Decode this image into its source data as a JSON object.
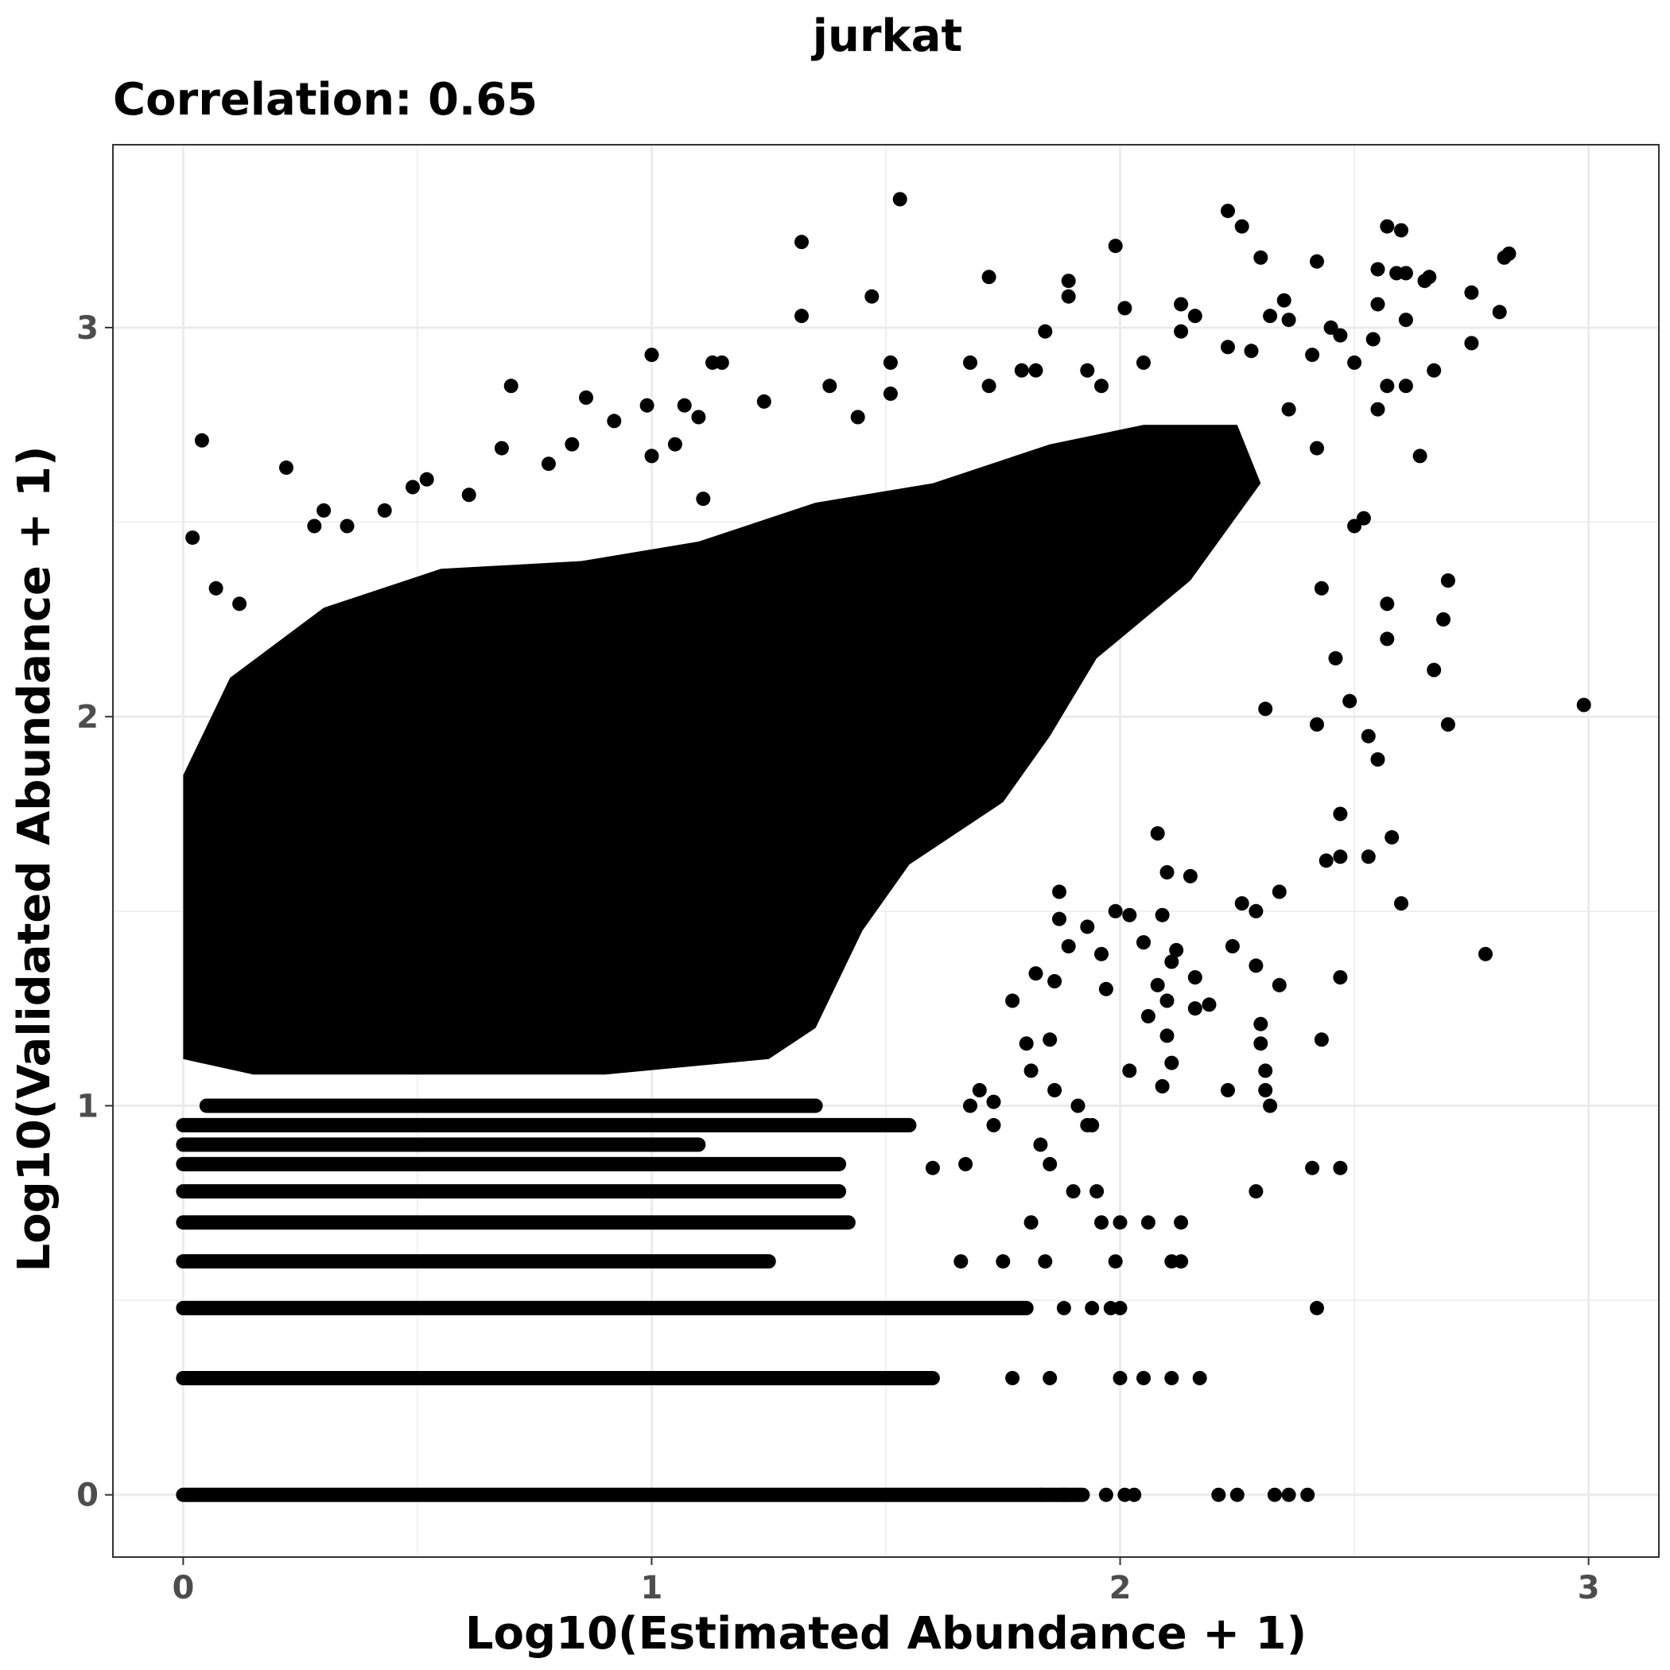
{
  "chart_data": {
    "type": "scatter",
    "title": "jurkat",
    "subtitle": "Correlation: 0.65",
    "xlabel": "Log10(Estimated Abundance + 1)",
    "ylabel": "Log10(Validated Abundance + 1)",
    "xlim": [
      -0.15,
      3.15
    ],
    "ylim": [
      -0.16,
      3.47
    ],
    "x_ticks": [
      0,
      1,
      2,
      3
    ],
    "y_ticks": [
      0,
      1,
      2,
      3
    ],
    "x_tick_labels": [
      "0",
      "1",
      "2",
      "3"
    ],
    "y_tick_labels": [
      "0",
      "1",
      "2",
      "3"
    ],
    "correlation": 0.65,
    "grid": true,
    "point_color": "#000000",
    "series": [
      {
        "points": [
          [
            1.53,
            3.33
          ],
          [
            1.32,
            3.22
          ],
          [
            2.23,
            3.3
          ],
          [
            2.26,
            3.26
          ],
          [
            2.57,
            3.26
          ],
          [
            2.6,
            3.25
          ],
          [
            1.99,
            3.21
          ],
          [
            2.83,
            3.19
          ],
          [
            2.82,
            3.18
          ],
          [
            2.3,
            3.18
          ],
          [
            2.42,
            3.17
          ],
          [
            2.55,
            3.15
          ],
          [
            2.59,
            3.14
          ],
          [
            2.61,
            3.14
          ],
          [
            2.66,
            3.13
          ],
          [
            1.72,
            3.13
          ],
          [
            1.89,
            3.12
          ],
          [
            2.65,
            3.12
          ],
          [
            1.47,
            3.08
          ],
          [
            1.89,
            3.08
          ],
          [
            2.75,
            3.09
          ],
          [
            2.13,
            3.06
          ],
          [
            2.35,
            3.07
          ],
          [
            2.55,
            3.06
          ],
          [
            2.81,
            3.04
          ],
          [
            2.01,
            3.05
          ],
          [
            1.32,
            3.03
          ],
          [
            2.16,
            3.03
          ],
          [
            2.32,
            3.03
          ],
          [
            2.36,
            3.02
          ],
          [
            2.61,
            3.02
          ],
          [
            2.45,
            3.0
          ],
          [
            2.47,
            2.98
          ],
          [
            2.13,
            2.99
          ],
          [
            1.84,
            2.99
          ],
          [
            2.75,
            2.96
          ],
          [
            2.54,
            2.97
          ],
          [
            2.23,
            2.95
          ],
          [
            2.28,
            2.94
          ],
          [
            2.41,
            2.93
          ],
          [
            1.0,
            2.93
          ],
          [
            2.05,
            2.91
          ],
          [
            2.5,
            2.91
          ],
          [
            1.68,
            2.91
          ],
          [
            1.13,
            2.91
          ],
          [
            1.15,
            2.91
          ],
          [
            1.51,
            2.91
          ],
          [
            1.93,
            2.89
          ],
          [
            2.67,
            2.89
          ],
          [
            1.79,
            2.89
          ],
          [
            1.82,
            2.89
          ],
          [
            2.57,
            2.85
          ],
          [
            2.61,
            2.85
          ],
          [
            1.38,
            2.85
          ],
          [
            0.7,
            2.85
          ],
          [
            1.72,
            2.85
          ],
          [
            1.96,
            2.85
          ],
          [
            1.51,
            2.83
          ],
          [
            0.86,
            2.82
          ],
          [
            2.55,
            2.79
          ],
          [
            0.99,
            2.8
          ],
          [
            1.24,
            2.81
          ],
          [
            1.07,
            2.8
          ],
          [
            1.44,
            2.77
          ],
          [
            1.1,
            2.77
          ],
          [
            0.92,
            2.76
          ],
          [
            2.36,
            2.79
          ],
          [
            0.04,
            2.71
          ],
          [
            2.64,
            2.67
          ],
          [
            0.22,
            2.64
          ],
          [
            2.42,
            2.69
          ],
          [
            1.0,
            2.67
          ],
          [
            1.05,
            2.7
          ],
          [
            0.78,
            2.65
          ],
          [
            0.83,
            2.7
          ],
          [
            0.68,
            2.69
          ],
          [
            0.52,
            2.61
          ],
          [
            0.49,
            2.59
          ],
          [
            0.61,
            2.57
          ],
          [
            1.11,
            2.56
          ],
          [
            0.02,
            2.46
          ],
          [
            0.3,
            2.53
          ],
          [
            0.43,
            2.53
          ],
          [
            0.35,
            2.49
          ],
          [
            0.28,
            2.49
          ],
          [
            2.5,
            2.49
          ],
          [
            2.52,
            2.51
          ],
          [
            0.07,
            2.33
          ],
          [
            0.12,
            2.29
          ],
          [
            2.57,
            2.29
          ],
          [
            2.7,
            2.35
          ],
          [
            2.69,
            2.25
          ],
          [
            2.57,
            2.2
          ],
          [
            2.43,
            2.33
          ],
          [
            2.46,
            2.15
          ],
          [
            2.67,
            2.12
          ],
          [
            2.99,
            2.03
          ],
          [
            2.7,
            1.98
          ],
          [
            2.53,
            1.95
          ],
          [
            2.42,
            1.98
          ],
          [
            2.49,
            2.04
          ],
          [
            2.55,
            1.89
          ],
          [
            2.31,
            2.02
          ],
          [
            2.47,
            1.75
          ],
          [
            2.58,
            1.69
          ],
          [
            2.53,
            1.64
          ],
          [
            2.47,
            1.64
          ],
          [
            2.44,
            1.63
          ],
          [
            2.6,
            1.52
          ],
          [
            2.78,
            1.39
          ],
          [
            2.29,
            1.5
          ],
          [
            2.26,
            1.52
          ],
          [
            2.34,
            1.55
          ],
          [
            2.24,
            1.41
          ],
          [
            2.47,
            1.33
          ],
          [
            2.34,
            1.31
          ],
          [
            2.29,
            1.36
          ],
          [
            2.19,
            1.26
          ],
          [
            2.3,
            1.21
          ],
          [
            2.3,
            1.16
          ],
          [
            2.43,
            1.17
          ],
          [
            2.31,
            1.09
          ],
          [
            2.31,
            1.04
          ],
          [
            2.23,
            1.04
          ],
          [
            2.32,
            1.0
          ],
          [
            2.41,
            0.84
          ],
          [
            2.47,
            0.84
          ],
          [
            2.29,
            0.78
          ],
          [
            2.42,
            0.48
          ],
          [
            2.08,
            1.7
          ],
          [
            2.1,
            1.6
          ],
          [
            2.15,
            1.59
          ],
          [
            1.99,
            1.5
          ],
          [
            2.02,
            1.49
          ],
          [
            2.09,
            1.49
          ],
          [
            2.05,
            1.42
          ],
          [
            2.12,
            1.4
          ],
          [
            2.11,
            1.37
          ],
          [
            2.16,
            1.33
          ],
          [
            2.08,
            1.31
          ],
          [
            2.1,
            1.27
          ],
          [
            2.16,
            1.25
          ],
          [
            2.06,
            1.23
          ],
          [
            2.1,
            1.18
          ],
          [
            2.11,
            1.11
          ],
          [
            2.09,
            1.05
          ],
          [
            2.02,
            1.09
          ],
          [
            1.97,
            1.3
          ],
          [
            1.96,
            1.39
          ],
          [
            1.93,
            1.46
          ],
          [
            1.87,
            1.55
          ],
          [
            1.87,
            1.48
          ],
          [
            1.89,
            1.41
          ],
          [
            1.86,
            1.32
          ],
          [
            1.82,
            1.34
          ],
          [
            1.77,
            1.27
          ],
          [
            1.8,
            1.16
          ],
          [
            1.85,
            1.17
          ],
          [
            1.86,
            1.04
          ],
          [
            1.81,
            1.09
          ],
          [
            1.91,
            1.0
          ],
          [
            1.7,
            1.04
          ],
          [
            1.73,
            1.01
          ],
          [
            1.68,
            1.0
          ],
          [
            1.73,
            0.95
          ],
          [
            1.83,
            0.9
          ],
          [
            1.85,
            0.85
          ],
          [
            1.95,
            0.78
          ],
          [
            1.9,
            0.78
          ],
          [
            1.67,
            0.85
          ],
          [
            1.6,
            0.84
          ],
          [
            1.93,
            0.95
          ],
          [
            1.94,
            0.95
          ],
          [
            2.0,
            0.7
          ],
          [
            2.06,
            0.7
          ],
          [
            2.13,
            0.7
          ],
          [
            1.96,
            0.7
          ],
          [
            1.81,
            0.7
          ],
          [
            1.99,
            0.6
          ],
          [
            2.11,
            0.6
          ],
          [
            2.13,
            0.6
          ],
          [
            1.66,
            0.6
          ],
          [
            1.75,
            0.6
          ],
          [
            1.84,
            0.6
          ],
          [
            1.88,
            0.48
          ],
          [
            2.0,
            0.48
          ],
          [
            1.94,
            0.48
          ],
          [
            1.98,
            0.48
          ],
          [
            2.17,
            0.3
          ],
          [
            2.05,
            0.3
          ],
          [
            2.11,
            0.3
          ],
          [
            2.0,
            0.3
          ],
          [
            1.85,
            0.3
          ],
          [
            1.77,
            0.3
          ],
          [
            2.21,
            0.0
          ],
          [
            2.25,
            0.0
          ],
          [
            2.33,
            0.0
          ],
          [
            2.36,
            0.0
          ],
          [
            2.4,
            0.0
          ],
          [
            2.03,
            0.0
          ],
          [
            2.01,
            0.0
          ],
          [
            1.97,
            0.0
          ],
          [
            1.88,
            0.0
          ],
          [
            1.83,
            0.0
          ]
        ]
      }
    ]
  }
}
